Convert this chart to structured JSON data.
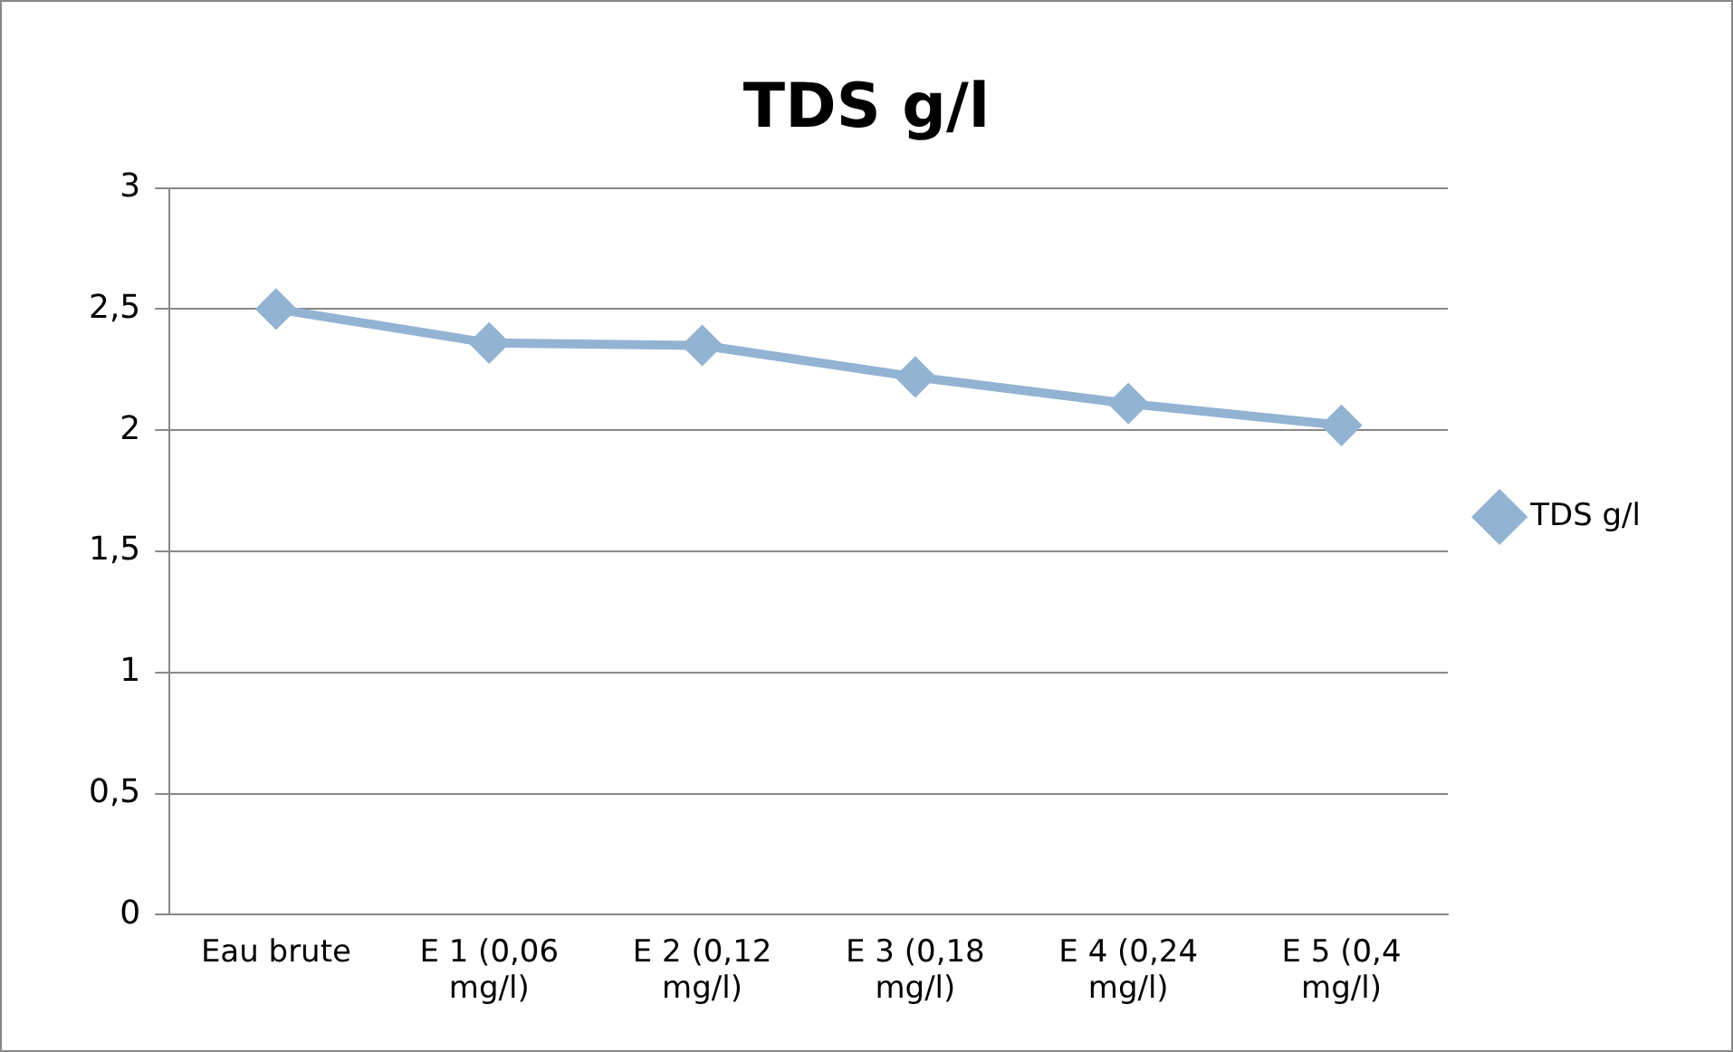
{
  "chart_data": {
    "type": "line",
    "title": "TDS g/l",
    "categories": [
      "Eau brute",
      "E 1 (0,06 mg/l)",
      "E 2 (0,12 mg/l)",
      "E 3 (0,18 mg/l)",
      "E 4 (0,24 mg/l)",
      "E 5 (0,4 mg/l)"
    ],
    "series": [
      {
        "name": "TDS g/l",
        "color": "#93b3d3",
        "values": [
          2.5,
          2.36,
          2.35,
          2.22,
          2.11,
          2.02
        ]
      }
    ],
    "ylim": [
      0,
      3
    ],
    "yticks": [
      0,
      {
        "value": 0.5,
        "label": "0,5"
      },
      1,
      {
        "value": 1.5,
        "label": "1,5"
      },
      2,
      {
        "value": 2.5,
        "label": "2,5"
      },
      3
    ],
    "grid": "y",
    "legend": "right",
    "marker": "diamond",
    "line_style": "solid"
  }
}
